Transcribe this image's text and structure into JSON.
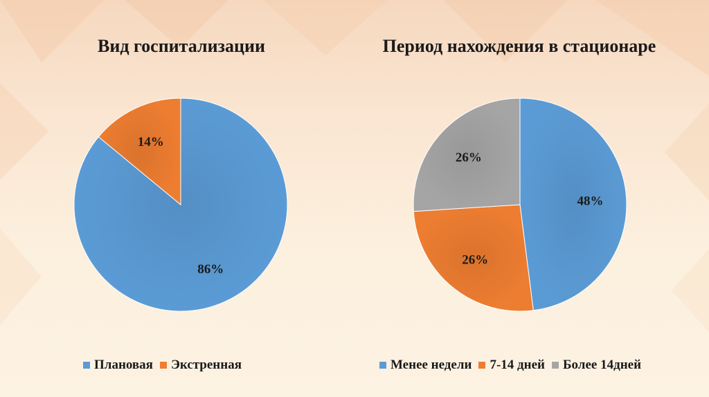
{
  "chart_data": [
    {
      "type": "pie",
      "title": "Вид госпитализации",
      "categories": [
        "Плановая",
        "Экстренная"
      ],
      "values": [
        86,
        14
      ],
      "labels": [
        "86%",
        "14%"
      ],
      "colors": [
        "#5b9bd5",
        "#ed7d31"
      ],
      "legend": "bottom"
    },
    {
      "type": "pie",
      "title": "Период нахождения в стационаре",
      "categories": [
        "Менее недели",
        "7-14 дней",
        "Более 14дней"
      ],
      "values": [
        48,
        26,
        26
      ],
      "labels": [
        "48%",
        "26%",
        "26%"
      ],
      "colors": [
        "#5b9bd5",
        "#ed7d31",
        "#a5a5a5"
      ],
      "legend": "bottom"
    }
  ]
}
